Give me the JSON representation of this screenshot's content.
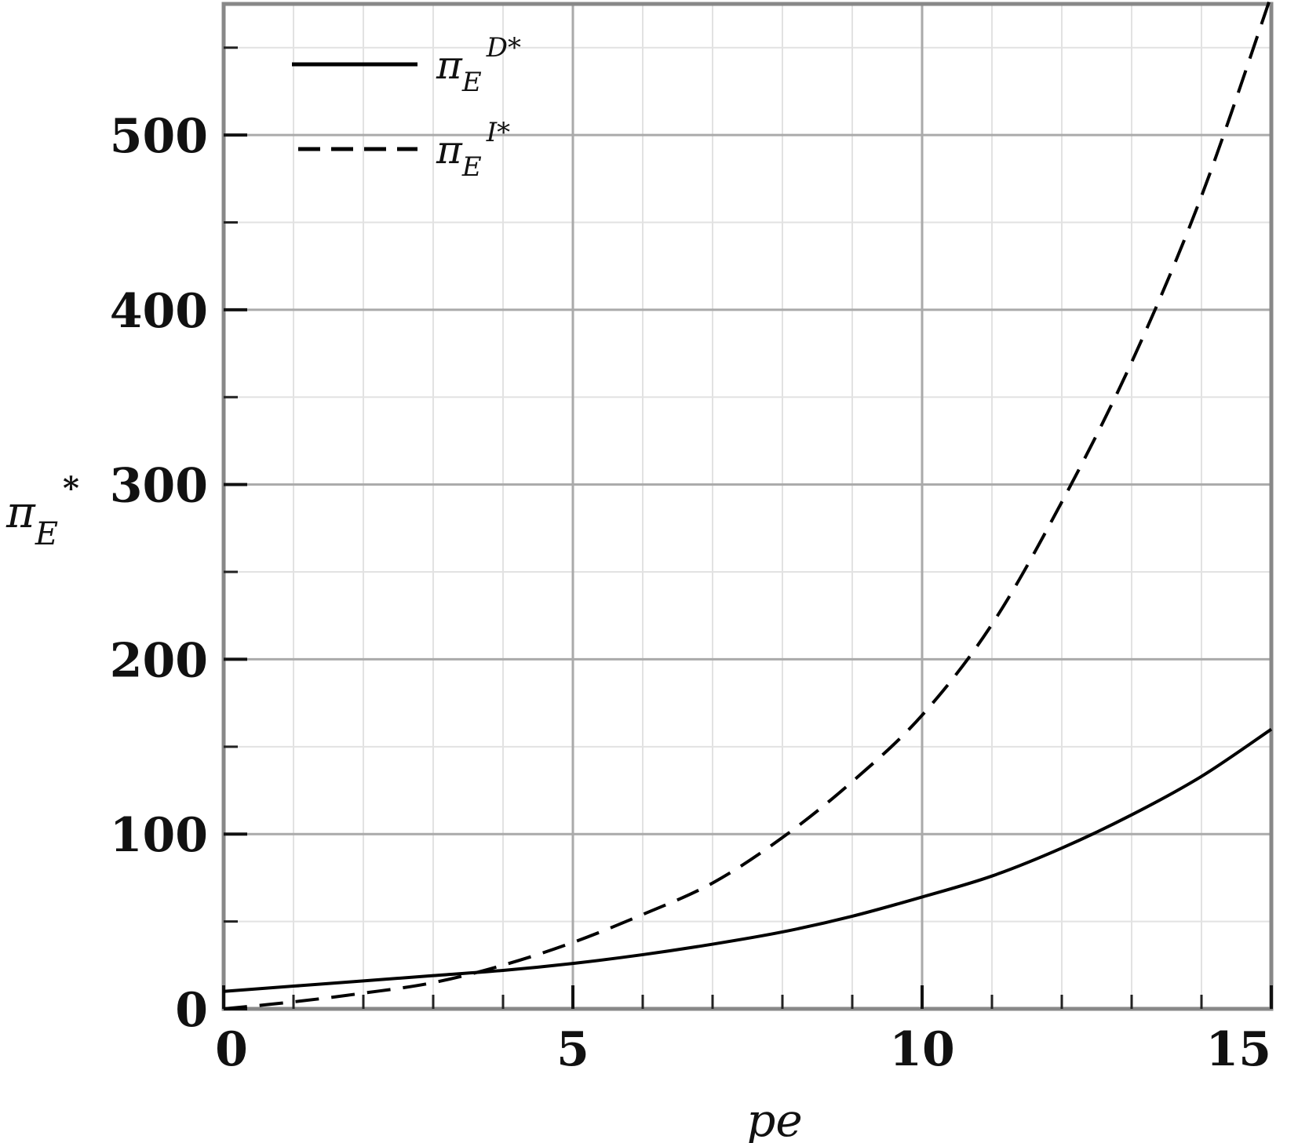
{
  "chart_data": {
    "type": "line",
    "title": "",
    "xlabel": "pe",
    "ylabel": {
      "base": "π",
      "sub": "E",
      "sup": "*"
    },
    "xlim": [
      0,
      15
    ],
    "ylim": [
      0,
      575
    ],
    "xticks": [
      0,
      5,
      10,
      15
    ],
    "xtick_labels": [
      "0",
      "5",
      "10",
      "15"
    ],
    "yticks": [
      0,
      100,
      200,
      300,
      400,
      500
    ],
    "ytick_labels": [
      "0",
      "100",
      "200",
      "300",
      "400",
      "500"
    ],
    "grid": true,
    "legend_position": "top-left",
    "series": [
      {
        "name": {
          "base": "π",
          "sub": "E",
          "sup": "D*"
        },
        "style": "solid",
        "color": "#000000",
        "x": [
          0,
          1,
          2,
          3,
          4,
          5,
          6,
          7,
          8,
          9,
          10,
          11,
          12,
          13,
          14,
          15
        ],
        "y": [
          10,
          13,
          16,
          19,
          22,
          26,
          31,
          37,
          44,
          53,
          64,
          76,
          92,
          111,
          133,
          160
        ]
      },
      {
        "name": {
          "base": "π",
          "sub": "E",
          "sup": "I*"
        },
        "style": "dashed",
        "color": "#000000",
        "x": [
          0,
          1,
          2,
          3,
          4,
          5,
          6,
          7,
          8,
          9,
          10,
          11,
          12,
          13,
          14,
          15
        ],
        "y": [
          0,
          4,
          9,
          15,
          25,
          38,
          54,
          72,
          98,
          130,
          168,
          220,
          290,
          370,
          465,
          580
        ]
      }
    ]
  }
}
